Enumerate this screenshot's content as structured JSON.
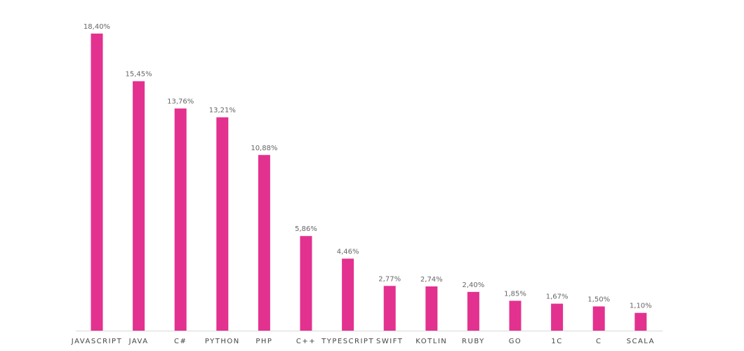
{
  "chart_data": {
    "type": "bar",
    "categories": [
      "JAVASCRIPT",
      "JAVA",
      "C#",
      "PYTHON",
      "PHP",
      "C++",
      "TYPESCRIPT",
      "SWIFT",
      "KOTLIN",
      "RUBY",
      "GO",
      "1C",
      "C",
      "SCALA"
    ],
    "values": [
      18.4,
      15.45,
      13.76,
      13.21,
      10.88,
      5.86,
      4.46,
      2.77,
      2.74,
      2.4,
      1.85,
      1.67,
      1.5,
      1.1
    ],
    "value_labels": [
      "18,40%",
      "15,45%",
      "13,76%",
      "13,21%",
      "10,88%",
      "5,86%",
      "4,46%",
      "2,77%",
      "2,74%",
      "2,40%",
      "1,85%",
      "1,67%",
      "1,50%",
      "1,10%"
    ],
    "color": "#e3318f"
  }
}
